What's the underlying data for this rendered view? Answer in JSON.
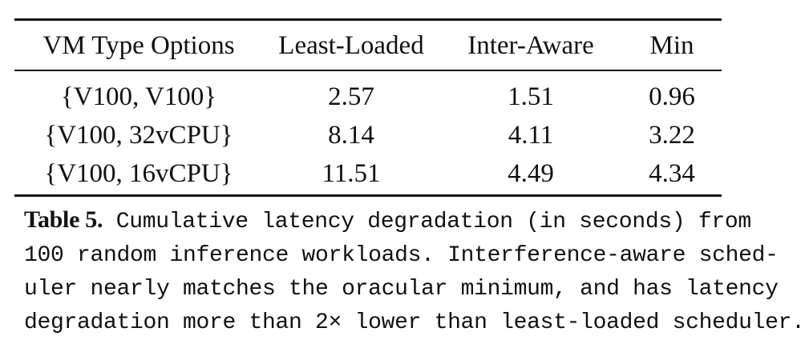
{
  "table": {
    "columns": [
      "VM Type Options",
      "Least-Loaded",
      "Inter-Aware",
      "Min"
    ],
    "rows": [
      [
        "{V100, V100}",
        "2.57",
        "1.51",
        "0.96"
      ],
      [
        "{V100, 32vCPU}",
        "8.14",
        "4.11",
        "3.22"
      ],
      [
        "{V100, 16vCPU}",
        "11.51",
        "4.49",
        "4.34"
      ]
    ]
  },
  "caption": {
    "label": "Table 5.",
    "lines": [
      " Cumulative latency degradation (in seconds) from",
      "100 random inference workloads. Interference-aware sched-",
      "uler nearly matches the oracular minimum, and has latency",
      "degradation more than 2× lower than least-loaded scheduler."
    ]
  }
}
